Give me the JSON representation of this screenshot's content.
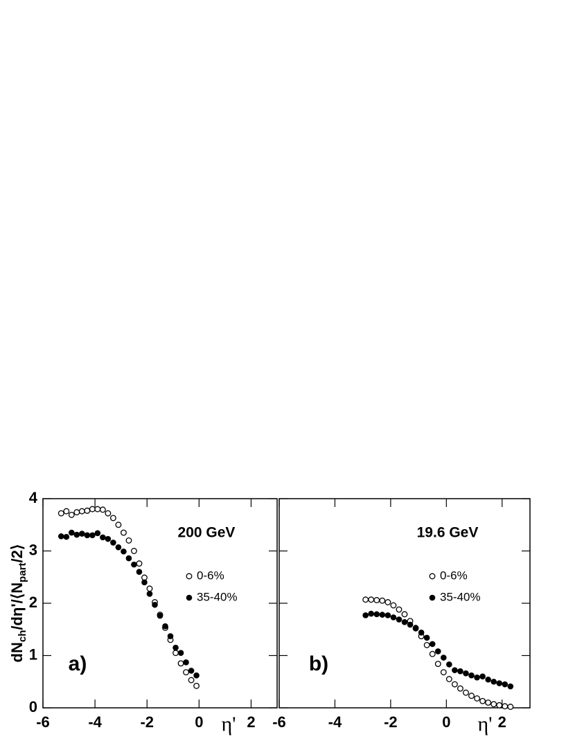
{
  "chart_data": [
    {
      "type": "scatter",
      "annotation": "200 GeV",
      "panel_label": "a)",
      "xlabel": "η'",
      "ylabel": [
        "dN",
        "ch",
        "/dη'/⟨N",
        "part",
        "/2⟩"
      ],
      "xlim": [
        -6,
        3
      ],
      "ylim": [
        0,
        4
      ],
      "xticks": [
        -6,
        -4,
        -2,
        0,
        2
      ],
      "yticks": [
        0,
        1,
        2,
        3,
        4
      ],
      "series": [
        {
          "name": "0-6%",
          "marker": "open",
          "color": "#000000",
          "x": [
            -5.3,
            -5.1,
            -4.9,
            -4.7,
            -4.5,
            -4.3,
            -4.1,
            -3.9,
            -3.7,
            -3.5,
            -3.3,
            -3.1,
            -2.9,
            -2.7,
            -2.5,
            -2.3,
            -2.1,
            -1.9,
            -1.7,
            -1.5,
            -1.3,
            -1.1,
            -0.9,
            -0.7,
            -0.5,
            -0.3,
            -0.1
          ],
          "values": [
            3.72,
            3.76,
            3.69,
            3.74,
            3.76,
            3.77,
            3.8,
            3.8,
            3.79,
            3.72,
            3.63,
            3.5,
            3.35,
            3.2,
            3.0,
            2.76,
            2.49,
            2.28,
            2.02,
            1.78,
            1.53,
            1.3,
            1.05,
            0.85,
            0.68,
            0.53,
            0.42
          ]
        },
        {
          "name": "35-40%",
          "marker": "filled",
          "color": "#000000",
          "x": [
            -5.3,
            -5.1,
            -4.9,
            -4.7,
            -4.5,
            -4.3,
            -4.1,
            -3.9,
            -3.7,
            -3.5,
            -3.3,
            -3.1,
            -2.9,
            -2.7,
            -2.5,
            -2.3,
            -2.1,
            -1.9,
            -1.7,
            -1.5,
            -1.3,
            -1.1,
            -0.9,
            -0.7,
            -0.5,
            -0.3,
            -0.1
          ],
          "values": [
            3.28,
            3.27,
            3.35,
            3.31,
            3.33,
            3.3,
            3.3,
            3.34,
            3.26,
            3.23,
            3.16,
            3.07,
            2.99,
            2.86,
            2.74,
            2.6,
            2.4,
            2.18,
            1.97,
            1.76,
            1.56,
            1.37,
            1.15,
            1.05,
            0.87,
            0.71,
            0.62
          ]
        }
      ]
    },
    {
      "type": "scatter",
      "annotation": "19.6 GeV",
      "panel_label": "b)",
      "xlabel": "η'",
      "xlim": [
        -6,
        3
      ],
      "ylim": [
        0,
        4
      ],
      "xticks": [
        -6,
        -4,
        -2,
        0,
        2
      ],
      "yticks": [
        0,
        1,
        2,
        3,
        4
      ],
      "series": [
        {
          "name": "0-6%",
          "marker": "open",
          "color": "#000000",
          "x": [
            -2.9,
            -2.7,
            -2.5,
            -2.3,
            -2.1,
            -1.9,
            -1.7,
            -1.5,
            -1.3,
            -1.1,
            -0.9,
            -0.7,
            -0.5,
            -0.3,
            -0.1,
            0.1,
            0.3,
            0.5,
            0.7,
            0.9,
            1.1,
            1.3,
            1.5,
            1.7,
            1.9,
            2.1,
            2.3
          ],
          "values": [
            2.07,
            2.07,
            2.06,
            2.05,
            2.02,
            1.96,
            1.88,
            1.79,
            1.66,
            1.52,
            1.37,
            1.2,
            1.03,
            0.84,
            0.68,
            0.55,
            0.45,
            0.37,
            0.29,
            0.23,
            0.18,
            0.13,
            0.1,
            0.07,
            0.05,
            0.03,
            0.02
          ]
        },
        {
          "name": "35-40%",
          "marker": "filled",
          "color": "#000000",
          "x": [
            -2.9,
            -2.7,
            -2.5,
            -2.3,
            -2.1,
            -1.9,
            -1.7,
            -1.5,
            -1.3,
            -1.1,
            -0.9,
            -0.7,
            -0.5,
            -0.3,
            -0.1,
            0.1,
            0.3,
            0.5,
            0.7,
            0.9,
            1.1,
            1.3,
            1.5,
            1.7,
            1.9,
            2.1,
            2.3
          ],
          "values": [
            1.77,
            1.8,
            1.79,
            1.78,
            1.77,
            1.73,
            1.69,
            1.64,
            1.59,
            1.53,
            1.44,
            1.34,
            1.22,
            1.08,
            0.96,
            0.83,
            0.72,
            0.7,
            0.66,
            0.62,
            0.58,
            0.6,
            0.54,
            0.5,
            0.47,
            0.45,
            0.41
          ]
        }
      ]
    }
  ]
}
